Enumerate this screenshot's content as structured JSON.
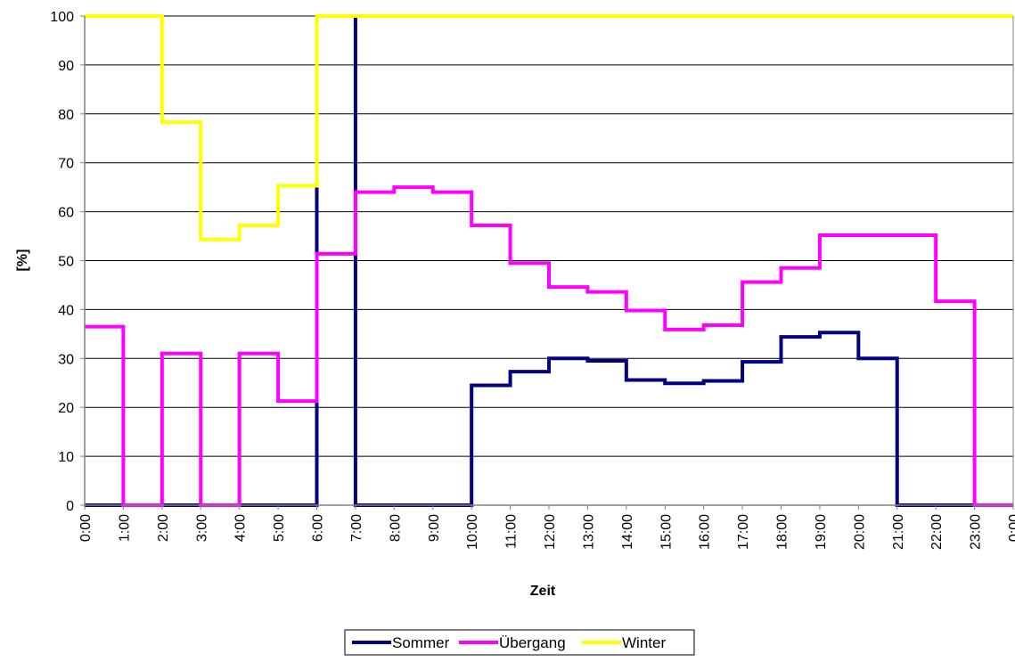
{
  "chart_data": {
    "type": "line",
    "step": true,
    "title": "",
    "xlabel": "Zeit",
    "ylabel": "[%]",
    "ylim": [
      0,
      100
    ],
    "yticks": [
      0,
      10,
      20,
      30,
      40,
      50,
      60,
      70,
      80,
      90,
      100
    ],
    "grid": "horizontal",
    "legend_position": "bottom",
    "x_tick_labels": [
      "0:00",
      "1:00",
      "2:00",
      "3:00",
      "4:00",
      "5:00",
      "6:00",
      "7:00",
      "8:00",
      "9:00",
      "10:00",
      "11:00",
      "12:00",
      "13:00",
      "14:00",
      "15:00",
      "16:00",
      "17:00",
      "18:00",
      "19:00",
      "20:00",
      "21:00",
      "22:00",
      "23:00",
      "0:00"
    ],
    "series": [
      {
        "name": "Sommer",
        "color": "#000080",
        "values": [
          0,
          0,
          0,
          0,
          0,
          0,
          100,
          0,
          0,
          0,
          24.5,
          27.3,
          30,
          29.5,
          25.6,
          24.9,
          25.4,
          29.3,
          34.4,
          35.3,
          30,
          0,
          0,
          0
        ]
      },
      {
        "name": "Übergang",
        "color": "#ff00ff",
        "values": [
          36.5,
          0,
          31,
          0,
          31,
          21.3,
          51.4,
          64,
          65,
          64,
          57.2,
          49.5,
          44.6,
          43.6,
          39.8,
          35.9,
          36.8,
          45.6,
          48.5,
          55.2,
          55.2,
          55.2,
          41.7,
          0
        ]
      },
      {
        "name": "Winter",
        "color": "#ffff00",
        "values": [
          100,
          100,
          78.3,
          54.3,
          57.2,
          65.3,
          100,
          100,
          100,
          100,
          100,
          100,
          100,
          100,
          100,
          100,
          100,
          100,
          100,
          100,
          100,
          100,
          100,
          100
        ]
      }
    ]
  }
}
